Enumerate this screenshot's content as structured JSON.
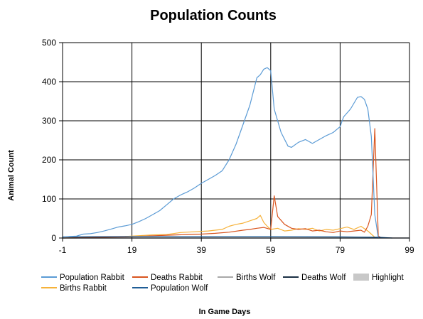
{
  "chart_data": {
    "type": "line",
    "title": "Population Counts",
    "xlabel": "In Game Days",
    "ylabel": "Animal Count",
    "xlim": [
      -1,
      99
    ],
    "ylim": [
      0,
      500
    ],
    "x_ticks": [
      "-1",
      "19",
      "39",
      "59",
      "79",
      "99"
    ],
    "y_ticks": [
      "0",
      "100",
      "200",
      "300",
      "400",
      "500"
    ],
    "grid": true,
    "legend_position": "bottom",
    "colors": {
      "Population Rabbit": "#5b9bd5",
      "Births Rabbit": "#f6b23a",
      "Deaths Rabbit": "#d9541e",
      "Population Wolf": "#1f5d96",
      "Births Wolf": "#a8a8a8",
      "Deaths Wolf": "#1a2f44",
      "Highlight": "#c8c8c8"
    },
    "legend": [
      "Population Rabbit",
      "Births Rabbit",
      "Deaths Rabbit",
      "Population Wolf",
      "Births Wolf",
      "Deaths Wolf",
      "Highlight"
    ],
    "series": [
      {
        "name": "Population Rabbit",
        "points": [
          [
            -1,
            2
          ],
          [
            1,
            4
          ],
          [
            3,
            5
          ],
          [
            5,
            10
          ],
          [
            7,
            11
          ],
          [
            9,
            14
          ],
          [
            11,
            18
          ],
          [
            13,
            23
          ],
          [
            15,
            28
          ],
          [
            17,
            31
          ],
          [
            19,
            35
          ],
          [
            21,
            42
          ],
          [
            23,
            50
          ],
          [
            25,
            60
          ],
          [
            27,
            70
          ],
          [
            29,
            85
          ],
          [
            31,
            100
          ],
          [
            33,
            110
          ],
          [
            35,
            118
          ],
          [
            37,
            128
          ],
          [
            39,
            140
          ],
          [
            41,
            150
          ],
          [
            43,
            160
          ],
          [
            45,
            172
          ],
          [
            47,
            200
          ],
          [
            49,
            240
          ],
          [
            51,
            290
          ],
          [
            53,
            340
          ],
          [
            55,
            410
          ],
          [
            56,
            418
          ],
          [
            57,
            432
          ],
          [
            58,
            436
          ],
          [
            59,
            428
          ],
          [
            60,
            330
          ],
          [
            62,
            270
          ],
          [
            64,
            235
          ],
          [
            65,
            232
          ],
          [
            67,
            245
          ],
          [
            69,
            252
          ],
          [
            71,
            242
          ],
          [
            73,
            252
          ],
          [
            75,
            262
          ],
          [
            77,
            270
          ],
          [
            79,
            285
          ],
          [
            80,
            310
          ],
          [
            82,
            330
          ],
          [
            84,
            360
          ],
          [
            85,
            362
          ],
          [
            86,
            355
          ],
          [
            87,
            330
          ],
          [
            88,
            260
          ],
          [
            89,
            60
          ],
          [
            90,
            0
          ]
        ]
      },
      {
        "name": "Births Rabbit",
        "points": [
          [
            -1,
            0
          ],
          [
            3,
            0
          ],
          [
            5,
            1
          ],
          [
            9,
            2
          ],
          [
            13,
            3
          ],
          [
            17,
            4
          ],
          [
            21,
            6
          ],
          [
            25,
            8
          ],
          [
            29,
            9
          ],
          [
            33,
            14
          ],
          [
            37,
            16
          ],
          [
            41,
            18
          ],
          [
            45,
            22
          ],
          [
            47,
            30
          ],
          [
            49,
            35
          ],
          [
            51,
            38
          ],
          [
            53,
            44
          ],
          [
            55,
            50
          ],
          [
            56,
            58
          ],
          [
            57,
            40
          ],
          [
            58,
            30
          ],
          [
            59,
            22
          ],
          [
            61,
            25
          ],
          [
            63,
            18
          ],
          [
            65,
            20
          ],
          [
            67,
            24
          ],
          [
            69,
            22
          ],
          [
            71,
            25
          ],
          [
            73,
            18
          ],
          [
            75,
            22
          ],
          [
            77,
            20
          ],
          [
            79,
            24
          ],
          [
            81,
            28
          ],
          [
            83,
            22
          ],
          [
            85,
            30
          ],
          [
            87,
            18
          ],
          [
            88,
            10
          ],
          [
            89,
            2
          ],
          [
            90,
            0
          ]
        ]
      },
      {
        "name": "Deaths Rabbit",
        "points": [
          [
            -1,
            0
          ],
          [
            5,
            1
          ],
          [
            11,
            2
          ],
          [
            17,
            3
          ],
          [
            23,
            5
          ],
          [
            29,
            7
          ],
          [
            35,
            9
          ],
          [
            39,
            10
          ],
          [
            43,
            12
          ],
          [
            47,
            15
          ],
          [
            51,
            20
          ],
          [
            53,
            22
          ],
          [
            55,
            25
          ],
          [
            57,
            27
          ],
          [
            59,
            22
          ],
          [
            60,
            108
          ],
          [
            61,
            55
          ],
          [
            63,
            35
          ],
          [
            65,
            25
          ],
          [
            67,
            22
          ],
          [
            69,
            24
          ],
          [
            71,
            18
          ],
          [
            73,
            20
          ],
          [
            75,
            16
          ],
          [
            77,
            14
          ],
          [
            79,
            18
          ],
          [
            81,
            16
          ],
          [
            83,
            18
          ],
          [
            85,
            20
          ],
          [
            86,
            15
          ],
          [
            87,
            30
          ],
          [
            88,
            60
          ],
          [
            89,
            280
          ],
          [
            90,
            5
          ],
          [
            91,
            0
          ]
        ]
      },
      {
        "name": "Population Wolf",
        "points": [
          [
            -1,
            3
          ],
          [
            19,
            4
          ],
          [
            39,
            4
          ],
          [
            59,
            4
          ],
          [
            79,
            3
          ],
          [
            90,
            2
          ],
          [
            94,
            0
          ]
        ]
      },
      {
        "name": "Births Wolf",
        "points": [
          [
            -1,
            0
          ],
          [
            99,
            0
          ]
        ]
      },
      {
        "name": "Deaths Wolf",
        "points": [
          [
            -1,
            0
          ],
          [
            99,
            0
          ]
        ]
      }
    ]
  }
}
